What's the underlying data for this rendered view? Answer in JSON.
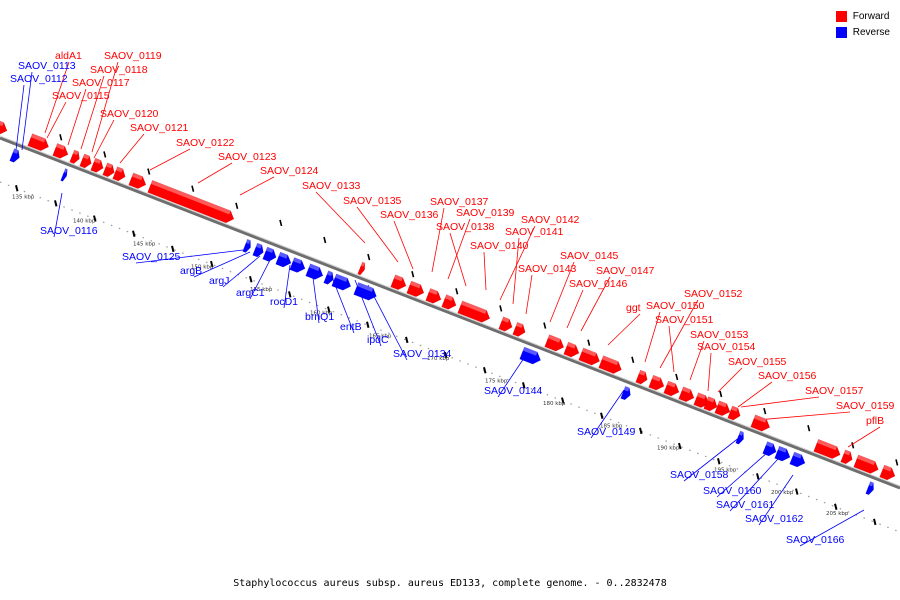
{
  "colors": {
    "forward": "#ff0000",
    "reverse": "#0000ff",
    "backbone": "#6e6e6e"
  },
  "legend": [
    {
      "label": "Forward",
      "strand": "forward"
    },
    {
      "label": "Reverse",
      "strand": "reverse"
    }
  ],
  "footer": "Staphylococcus aureus subsp. aureus ED133, complete genome. - 0..2832478",
  "scale_ticks": [
    "135 kbp",
    "140 kbp",
    "145 kbp",
    "150 kbp",
    "155 kbp",
    "160 kbp",
    "165 kbp",
    "170 kbp",
    "175 kbp",
    "180 kbp",
    "185 kbp",
    "190 kbp",
    "195 kbp",
    "200 kbp",
    "205 kbp"
  ],
  "forward_genes": [
    "aldA1",
    "SAOV_0119",
    "SAOV_0118",
    "SAOV_0117",
    "SAOV_0115",
    "SAOV_0120",
    "SAOV_0121",
    "SAOV_0122",
    "SAOV_0123",
    "SAOV_0124",
    "SAOV_0133",
    "SAOV_0135",
    "SAOV_0136",
    "SAOV_0137",
    "SAOV_0139",
    "SAOV_0138",
    "SAOV_0142",
    "SAOV_0141",
    "SAOV_0140",
    "SAOV_0145",
    "SAOV_0143",
    "SAOV_0147",
    "SAOV_0146",
    "ggt",
    "SAOV_0152",
    "SAOV_0150",
    "SAOV_0151",
    "SAOV_0153",
    "SAOV_0154",
    "SAOV_0155",
    "SAOV_0156",
    "SAOV_0157",
    "SAOV_0159",
    "pflB"
  ],
  "reverse_genes": [
    "SAOV_0113",
    "SAOV_0112",
    "SAOV_0116",
    "SAOV_0125",
    "argB",
    "argJ",
    "argC1",
    "rocD1",
    "brnQ1",
    "entB",
    "ipdC",
    "SAOV_0134",
    "SAOV_0144",
    "SAOV_0149",
    "SAOV_0158",
    "SAOV_0160",
    "SAOV_0161",
    "SAOV_0162",
    "SAOV_0166"
  ]
}
